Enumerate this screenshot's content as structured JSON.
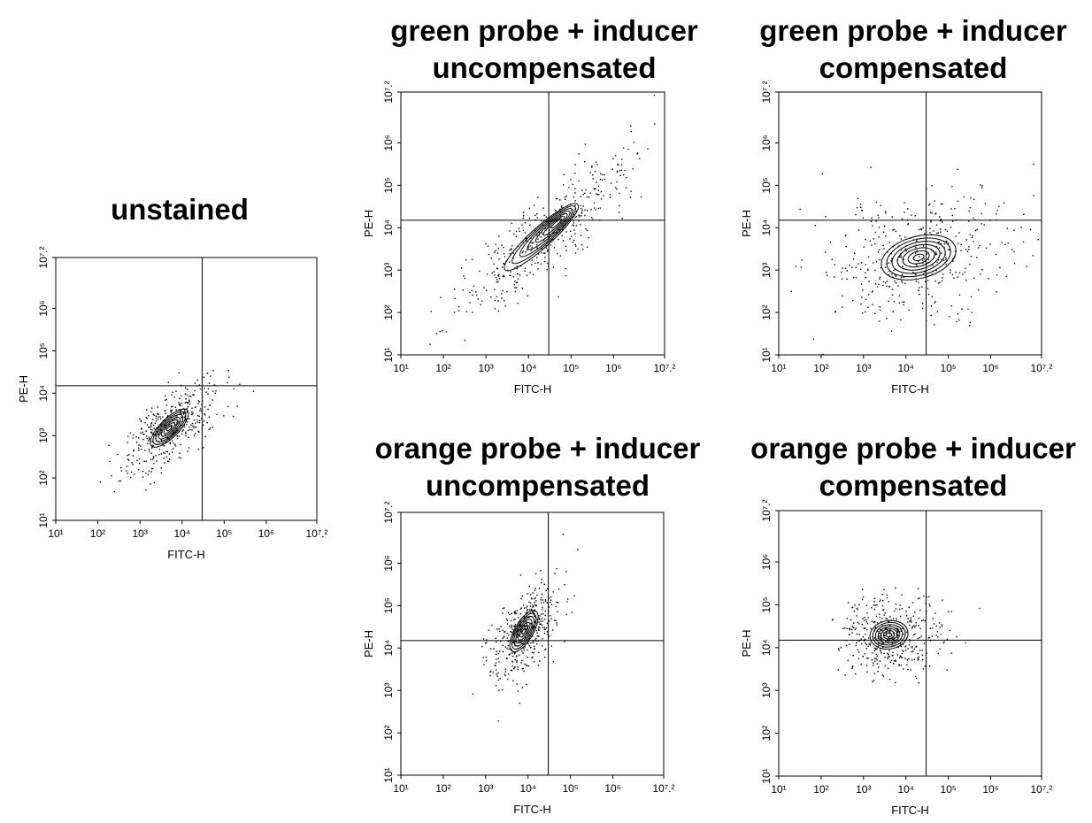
{
  "chart_data": [
    {
      "id": "unstained",
      "type": "scatter",
      "title": "unstained",
      "xlabel": "FITC-H",
      "ylabel": "PE-H",
      "xscale": "log",
      "yscale": "log",
      "xlim": [
        10,
        15848932
      ],
      "ylim": [
        10,
        15848932
      ],
      "x_ticks": [
        1,
        2,
        3,
        4,
        5,
        6,
        7.2
      ],
      "y_ticks": [
        1,
        2,
        3,
        4,
        5,
        6,
        7.2
      ],
      "quadrant_gate": {
        "x": 30000,
        "y": 15000
      },
      "population": {
        "center": [
          5000,
          1500
        ],
        "spread": [
          2000,
          2500
        ],
        "orientation": "diagonal"
      }
    },
    {
      "id": "green-uncompensated",
      "type": "scatter",
      "title_lines": [
        "green probe + inducer",
        "uncompensated"
      ],
      "xlabel": "FITC-H",
      "ylabel": "PE-H",
      "xscale": "log",
      "yscale": "log",
      "xlim": [
        10,
        15848932
      ],
      "ylim": [
        10,
        15848932
      ],
      "x_ticks": [
        1,
        2,
        3,
        4,
        5,
        6,
        7.2
      ],
      "y_ticks": [
        1,
        2,
        3,
        4,
        5,
        6,
        7.2
      ],
      "quadrant_gate": {
        "x": 30000,
        "y": 15000
      },
      "population": {
        "center": [
          20000,
          6000
        ],
        "spread": [
          300000,
          100000
        ],
        "orientation": "diagonal"
      }
    },
    {
      "id": "green-compensated",
      "type": "scatter",
      "title_lines": [
        "green probe + inducer",
        "compensated"
      ],
      "xlabel": "FITC-H",
      "ylabel": "PE-H",
      "xscale": "log",
      "yscale": "log",
      "xlim": [
        10,
        15848932
      ],
      "ylim": [
        10,
        15848932
      ],
      "x_ticks": [
        1,
        2,
        3,
        4,
        5,
        6,
        7.2
      ],
      "y_ticks": [
        1,
        2,
        3,
        4,
        5,
        6,
        7.2
      ],
      "quadrant_gate": {
        "x": 30000,
        "y": 15000
      },
      "population": {
        "center": [
          20000,
          2000
        ],
        "spread": [
          1000000,
          5000
        ],
        "orientation": "horizontal-tail"
      }
    },
    {
      "id": "orange-uncompensated",
      "type": "scatter",
      "title_lines": [
        "orange probe + inducer",
        "uncompensated"
      ],
      "xlabel": "FITC-H",
      "ylabel": "PE-H",
      "xscale": "log",
      "yscale": "log",
      "xlim": [
        10,
        15848932
      ],
      "ylim": [
        10,
        15848932
      ],
      "x_ticks": [
        1,
        2,
        3,
        4,
        5,
        6,
        7.2
      ],
      "y_ticks": [
        1,
        2,
        3,
        4,
        5,
        6,
        7.2
      ],
      "quadrant_gate": {
        "x": 30000,
        "y": 15000
      },
      "population": {
        "center": [
          8000,
          25000
        ],
        "spread": [
          10000,
          80000
        ],
        "orientation": "diagonal"
      }
    },
    {
      "id": "orange-compensated",
      "type": "scatter",
      "title_lines": [
        "orange probe + inducer",
        "compensated"
      ],
      "xlabel": "FITC-H",
      "ylabel": "PE-H",
      "xscale": "log",
      "yscale": "log",
      "xlim": [
        10,
        15848932
      ],
      "ylim": [
        10,
        15848932
      ],
      "x_ticks": [
        1,
        2,
        3,
        4,
        5,
        6,
        7.2
      ],
      "y_ticks": [
        1,
        2,
        3,
        4,
        5,
        6,
        7.2
      ],
      "quadrant_gate": {
        "x": 30000,
        "y": 15000
      },
      "population": {
        "center": [
          4000,
          20000
        ],
        "spread": [
          20000,
          60000
        ],
        "orientation": "round"
      }
    }
  ]
}
